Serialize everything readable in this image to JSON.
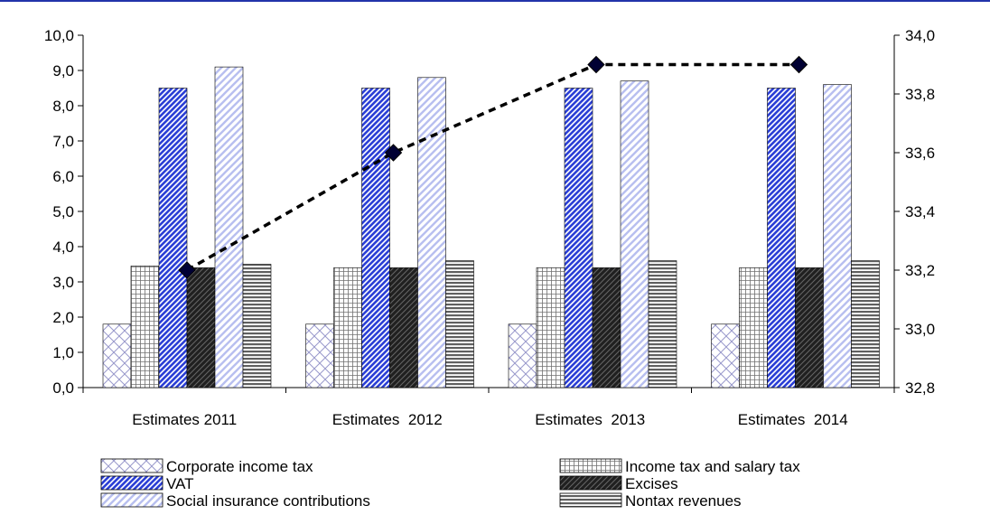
{
  "chart_data": {
    "type": "bar",
    "categories": [
      "Estimates 2011",
      "Estimates  2012",
      "Estimates  2013",
      "Estimates  2014"
    ],
    "series": [
      {
        "name": "Corporate income tax",
        "axis": "left",
        "values": [
          1.8,
          1.8,
          1.8,
          1.8
        ],
        "pattern": "crosshatch-diagonal",
        "color": "#9999cc"
      },
      {
        "name": "Income tax and salary tax",
        "axis": "left",
        "values": [
          3.45,
          3.4,
          3.4,
          3.4
        ],
        "pattern": "grid",
        "color": "#808080"
      },
      {
        "name": "VAT",
        "axis": "left",
        "values": [
          8.5,
          8.5,
          8.5,
          8.5
        ],
        "pattern": "diagonal-dense",
        "color": "#2b3fd6"
      },
      {
        "name": "Excises",
        "axis": "left",
        "values": [
          3.4,
          3.4,
          3.4,
          3.4
        ],
        "pattern": "dark-diagonal",
        "color": "#202020"
      },
      {
        "name": "Social insurance contributions",
        "axis": "left",
        "values": [
          9.1,
          8.8,
          8.7,
          8.6
        ],
        "pattern": "light-diagonal",
        "color": "#b8bff0"
      },
      {
        "name": "Nontax revenues",
        "axis": "left",
        "values": [
          3.5,
          3.6,
          3.6,
          3.6
        ],
        "pattern": "horizontal",
        "color": "#606060"
      }
    ],
    "line_series": {
      "name": "",
      "axis": "right",
      "values": [
        33.2,
        33.6,
        33.9,
        33.9
      ],
      "style": "dotted",
      "marker": "diamond",
      "marker_color": "#000033"
    },
    "y_left": {
      "ylim": [
        0,
        10
      ],
      "ticks": [
        "0,0",
        "1,0",
        "2,0",
        "3,0",
        "4,0",
        "5,0",
        "6,0",
        "7,0",
        "8,0",
        "9,0",
        "10,0"
      ]
    },
    "y_right": {
      "ylim": [
        32.8,
        34.0
      ],
      "ticks": [
        "32,8",
        "33,0",
        "33,2",
        "33,4",
        "33,6",
        "33,8",
        "34,0"
      ]
    },
    "legend": {
      "placement": "bottom",
      "items": [
        "Corporate income tax",
        "Income tax and salary tax",
        "VAT",
        "Excises",
        "Social insurance contributions",
        "Nontax revenues"
      ]
    },
    "grid": false,
    "title": "",
    "xlabel": "",
    "ylabel": ""
  },
  "colors": {
    "frame_top_border": "#2233aa",
    "axis": "#000000"
  }
}
